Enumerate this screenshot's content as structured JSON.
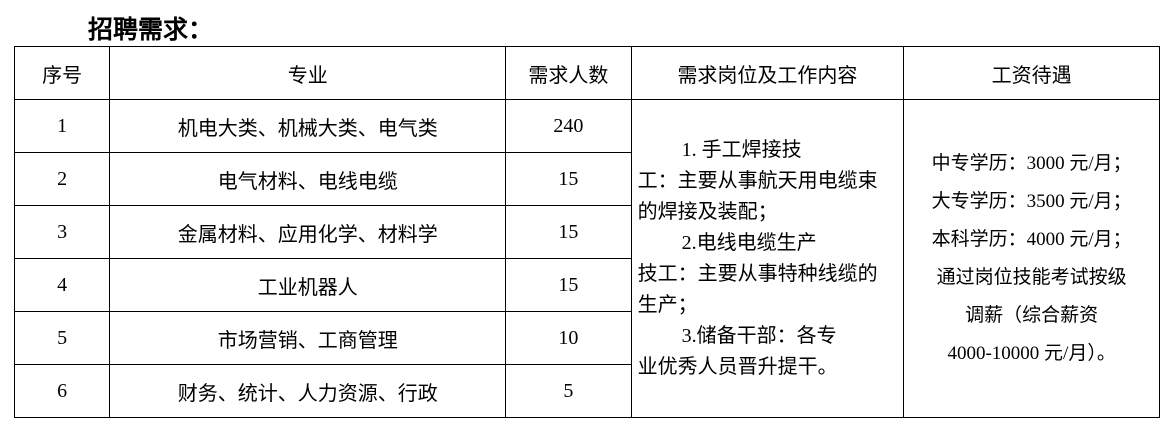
{
  "title": "招聘需求：",
  "table": {
    "headers": [
      "序号",
      "专业",
      "需求人数",
      "需求岗位及工作内容",
      "工资待遇"
    ],
    "rows": [
      {
        "no": "1",
        "major": "机电大类、机械大类、电气类",
        "count": "240"
      },
      {
        "no": "2",
        "major": "电气材料、电线电缆",
        "count": "15"
      },
      {
        "no": "3",
        "major": "金属材料、应用化学、材料学",
        "count": "15"
      },
      {
        "no": "4",
        "major": "工业机器人",
        "count": "15"
      },
      {
        "no": "5",
        "major": "市场营销、工商管理",
        "count": "10"
      },
      {
        "no": "6",
        "major": "财务、统计、人力资源、行政",
        "count": "5"
      }
    ],
    "duties": [
      {
        "head": "1.  手工焊接技",
        "rest": "工：主要从事航天用电缆束的焊接及装配；"
      },
      {
        "head": "2.电线电缆生产",
        "rest": "技工：主要从事特种线缆的生产；"
      },
      {
        "head": "3.储备干部：各专",
        "rest": "业优秀人员晋升提干。"
      }
    ],
    "wages": [
      "中专学历：3000 元/月；",
      "大专学历：3500 元/月；",
      "本科学历：4000 元/月；",
      "通过岗位技能考试按级",
      "调薪（综合薪资",
      "4000-10000 元/月）。"
    ]
  }
}
